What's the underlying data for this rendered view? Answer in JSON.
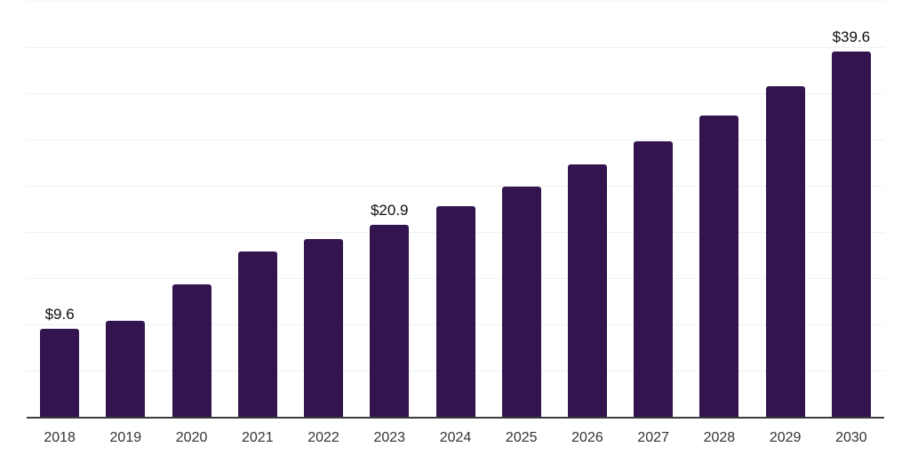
{
  "chart_data": {
    "type": "bar",
    "categories": [
      "2018",
      "2019",
      "2020",
      "2021",
      "2022",
      "2023",
      "2024",
      "2025",
      "2026",
      "2027",
      "2028",
      "2029",
      "2030"
    ],
    "values": [
      9.6,
      10.5,
      14.4,
      18.0,
      19.3,
      20.9,
      22.9,
      25.0,
      27.4,
      29.9,
      32.7,
      35.9,
      39.6
    ],
    "value_labels": [
      "$9.6",
      "",
      "",
      "",
      "",
      "$20.9",
      "",
      "",
      "",
      "",
      "",
      "",
      "$39.6"
    ],
    "xlabel": "",
    "ylabel": "",
    "ylim": [
      0,
      45
    ],
    "ytick_step": 5,
    "grid": "horizontal",
    "legend": "none",
    "colors": {
      "bar": "#34144e",
      "gridline": "#f1f1f4",
      "axis_line": "#3d3d3d",
      "value_label": "#0d0d0d",
      "tick_label": "#333333",
      "background": "#ffffff"
    }
  }
}
